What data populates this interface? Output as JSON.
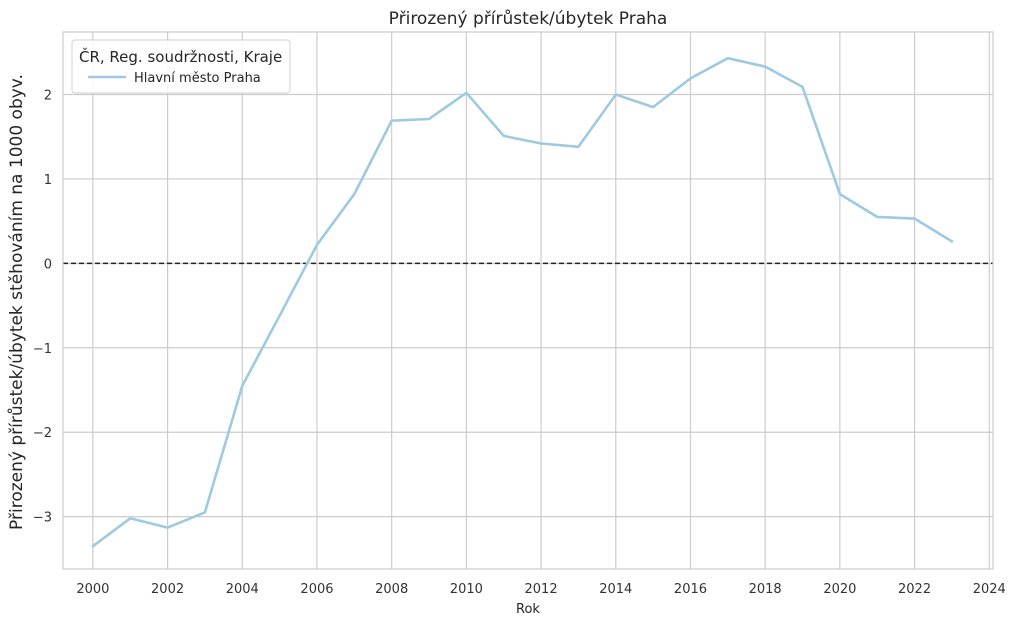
{
  "chart_data": {
    "type": "line",
    "title": "Přirozený přírůstek/úbytek Praha",
    "xlabel": "Rok",
    "ylabel": "Přirozený přírůstek/úbytek stěhováním na 1000 obyv.",
    "xlim": [
      1999.2,
      2024.1
    ],
    "ylim": [
      -3.62,
      2.74
    ],
    "x_ticks": [
      2000,
      2002,
      2004,
      2006,
      2008,
      2010,
      2012,
      2014,
      2016,
      2018,
      2020,
      2022,
      2024
    ],
    "y_ticks": [
      -3,
      -2,
      -1,
      0,
      1,
      2
    ],
    "y_tick_labels": [
      "−3",
      "−2",
      "−1",
      "0",
      "1",
      "2"
    ],
    "grid": true,
    "reference_line": {
      "y": 0,
      "style": "dashed",
      "color": "#222222"
    },
    "legend": {
      "title": "ČR, Reg. soudržnosti, Kraje",
      "placement": "top-left"
    },
    "series": [
      {
        "name": "Hlavní město Praha",
        "color": "#9ecae1",
        "x": [
          2000,
          2001,
          2002,
          2003,
          2004,
          2005,
          2006,
          2007,
          2008,
          2009,
          2010,
          2011,
          2012,
          2013,
          2014,
          2015,
          2016,
          2017,
          2018,
          2019,
          2020,
          2021,
          2022,
          2023
        ],
        "values": [
          -3.35,
          -3.02,
          -3.13,
          -2.95,
          -1.45,
          -0.62,
          0.22,
          0.82,
          1.69,
          1.71,
          2.02,
          1.51,
          1.42,
          1.38,
          2.0,
          1.85,
          2.19,
          2.43,
          2.33,
          2.09,
          0.82,
          0.55,
          0.53,
          0.26
        ]
      }
    ]
  }
}
